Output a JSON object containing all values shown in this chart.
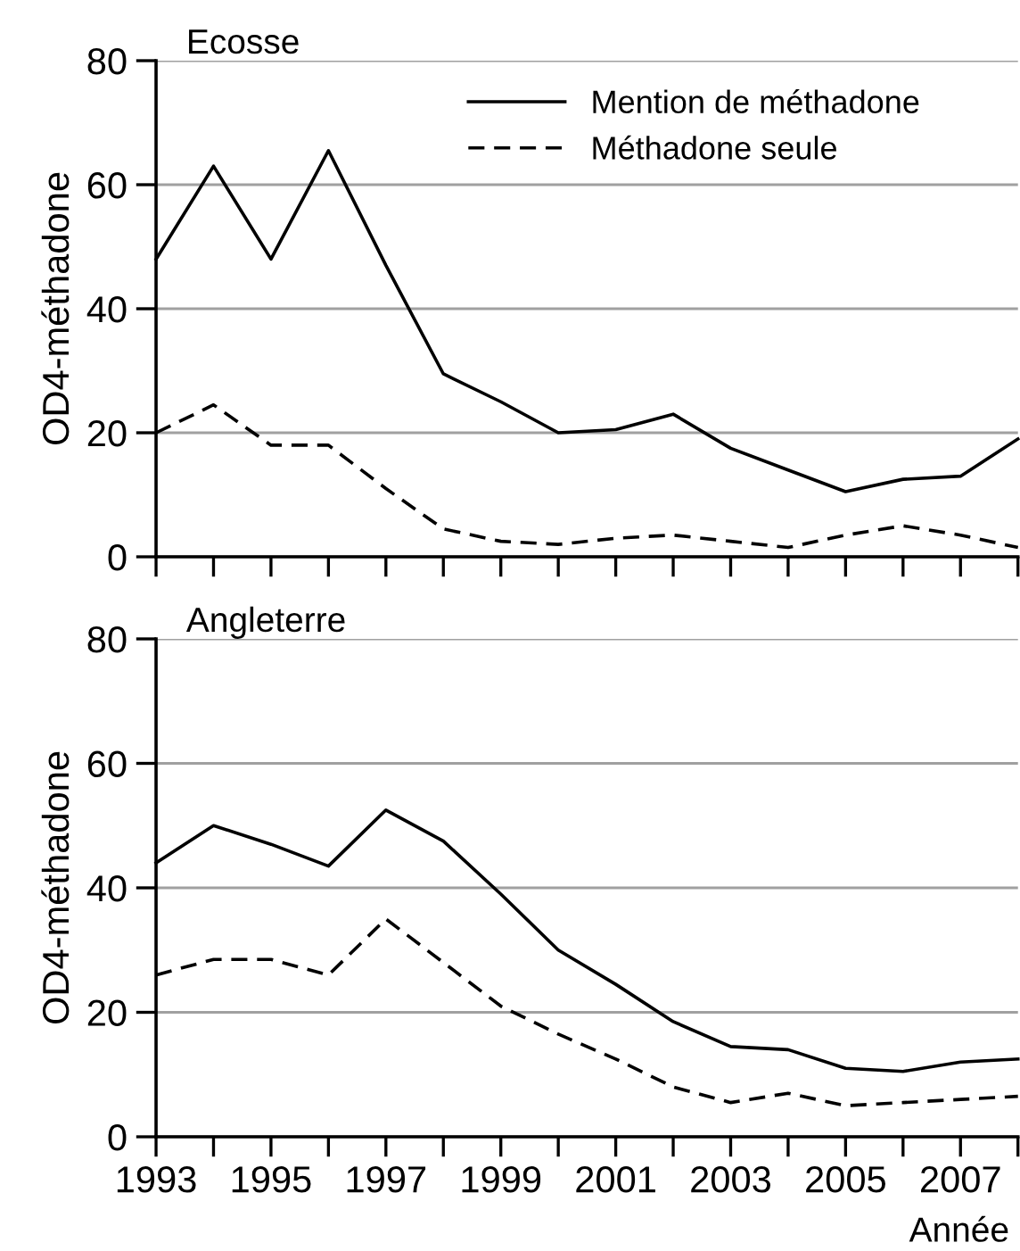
{
  "chart_data": [
    {
      "type": "line",
      "title": "Ecosse",
      "ylabel": "OD4-méthadone",
      "x": [
        1993,
        1994,
        1995,
        1996,
        1997,
        1998,
        1999,
        2000,
        2001,
        2002,
        2003,
        2004,
        2005,
        2006,
        2007,
        2008
      ],
      "xlim": [
        1993,
        2008
      ],
      "xticks": [
        1993,
        {
          "value": 1994,
          "label": null
        },
        1995,
        {
          "value": 1996,
          "label": null
        },
        1997,
        {
          "value": 1998,
          "label": null
        },
        1999,
        {
          "value": 2000,
          "label": null
        },
        2001,
        {
          "value": 2002,
          "label": null
        },
        2003,
        {
          "value": 2004,
          "label": null
        },
        2005,
        {
          "value": 2006,
          "label": null
        },
        2007,
        {
          "value": 2008,
          "label": null
        }
      ],
      "ylim": [
        0,
        80
      ],
      "yticks": [
        0,
        20,
        40,
        60,
        80
      ],
      "grid": "y",
      "legend": "top right",
      "tick_labels": "y",
      "series": [
        {
          "name": "Mention de méthadone",
          "color": "#000000",
          "line_style": "solid",
          "values": [
            48,
            63,
            48,
            65.5,
            47,
            29.5,
            25,
            20,
            20.5,
            23,
            17.5,
            14,
            10.5,
            12.5,
            13,
            19
          ]
        },
        {
          "name": "Méthadone seule",
          "color": "#000000",
          "line_style": "dashed",
          "values": [
            20,
            24.5,
            18,
            18,
            11,
            4.5,
            2.5,
            2,
            3,
            3.5,
            2.5,
            1.5,
            3.5,
            5,
            3.5,
            1.5
          ]
        }
      ]
    },
    {
      "type": "line",
      "title": "Angleterre",
      "ylabel": "OD4-méthadone",
      "xlabel": "Année",
      "x": [
        1993,
        1994,
        1995,
        1996,
        1997,
        1998,
        1999,
        2000,
        2001,
        2002,
        2003,
        2004,
        2005,
        2006,
        2007,
        2008
      ],
      "xlim": [
        1993,
        2008
      ],
      "xticks": [
        1993,
        {
          "value": 1994,
          "label": null
        },
        1995,
        {
          "value": 1996,
          "label": null
        },
        1997,
        {
          "value": 1998,
          "label": null
        },
        1999,
        {
          "value": 2000,
          "label": null
        },
        2001,
        {
          "value": 2002,
          "label": null
        },
        2003,
        {
          "value": 2004,
          "label": null
        },
        2005,
        {
          "value": 2006,
          "label": null
        },
        2007,
        {
          "value": 2008,
          "label": null
        }
      ],
      "ylim": [
        0,
        80
      ],
      "yticks": [
        0,
        20,
        40,
        60,
        80
      ],
      "grid": "y",
      "series": [
        {
          "color": "#000000",
          "line_style": "solid",
          "values": [
            44,
            50,
            47,
            43.5,
            52.5,
            47.5,
            39,
            30,
            24.5,
            18.5,
            14.5,
            14,
            11,
            10.5,
            12,
            12.5
          ]
        },
        {
          "color": "#000000",
          "line_style": "dashed",
          "values": [
            26,
            28.5,
            28.5,
            26,
            35,
            28,
            21,
            16.5,
            12.5,
            8,
            5.5,
            7,
            5,
            5.5,
            6,
            6.5
          ]
        }
      ]
    }
  ]
}
